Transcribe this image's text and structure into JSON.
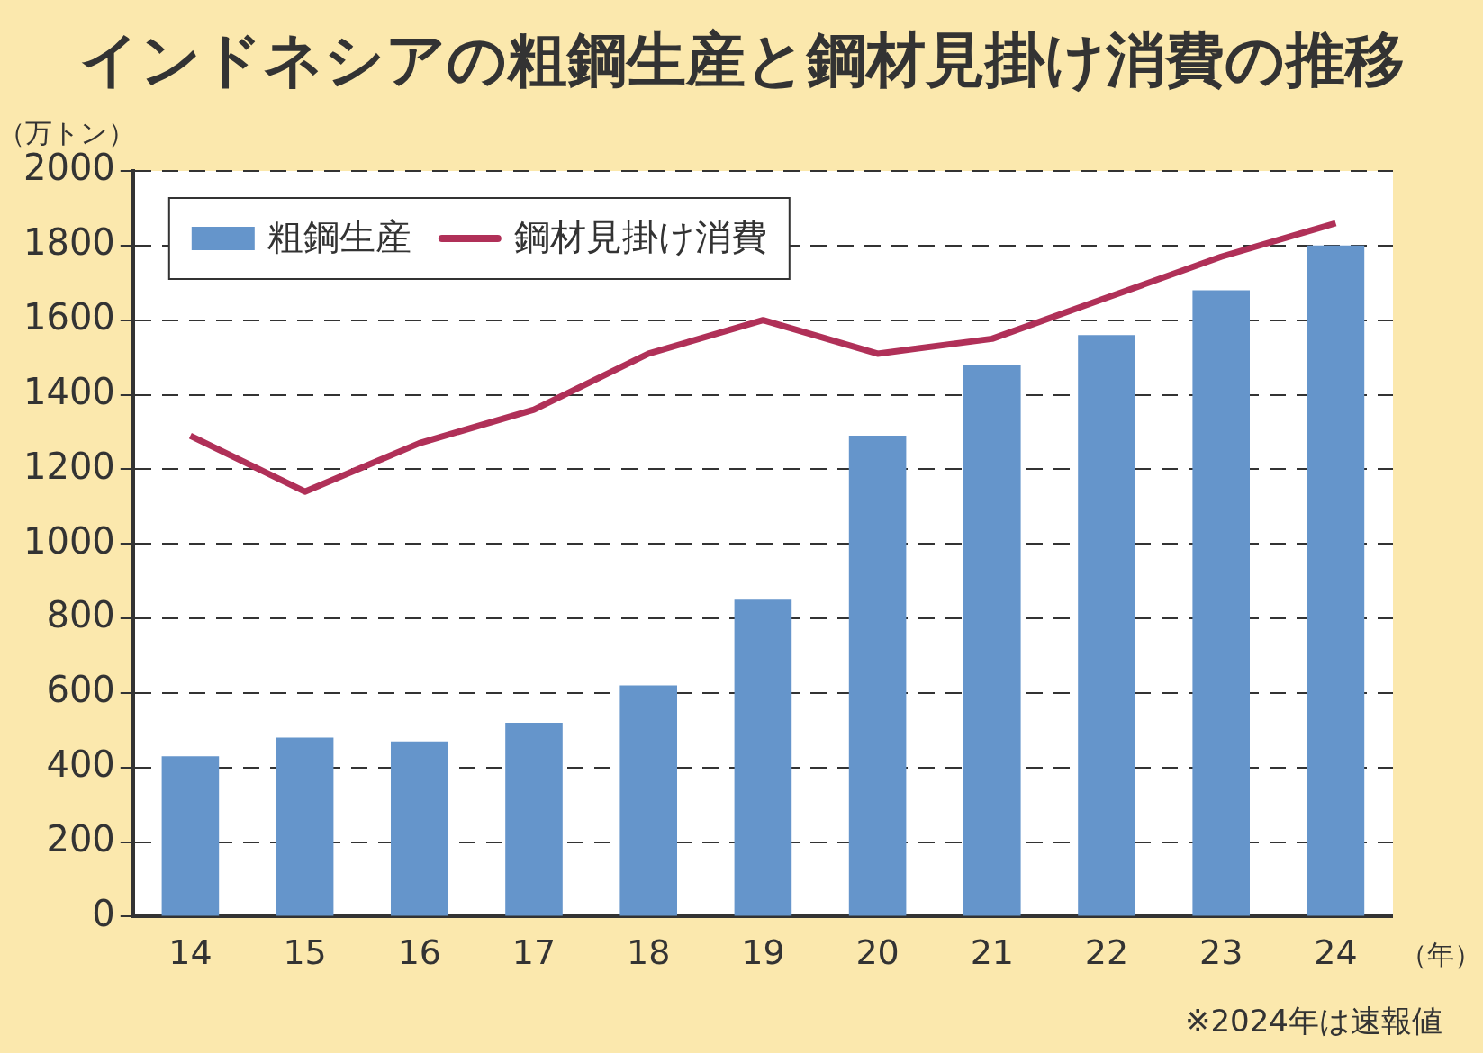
{
  "chart_data": {
    "type": "bar",
    "title": "インドネシアの粗鋼生産と鋼材見掛け消費の推移",
    "ylabel": "（万トン）",
    "xlabel": "（年）",
    "annotations": [
      "※2024年は速報値"
    ],
    "categories": [
      "14",
      "15",
      "16",
      "17",
      "18",
      "19",
      "20",
      "21",
      "22",
      "23",
      "24"
    ],
    "series": [
      {
        "name": "粗鋼生産",
        "color": "#6595cb",
        "values": [
          430,
          480,
          470,
          520,
          620,
          850,
          1290,
          1480,
          1560,
          1680,
          1800
        ]
      },
      {
        "name": "鋼材見掛け消費",
        "type": "line",
        "color": "#b03058",
        "values": [
          1290,
          1140,
          1270,
          1360,
          1510,
          1600,
          1510,
          1550,
          1660,
          1770,
          1860
        ]
      }
    ],
    "ylim": [
      0,
      2000
    ],
    "yticks": [
      0,
      200,
      400,
      600,
      800,
      1000,
      1200,
      1400,
      1600,
      1800,
      2000
    ],
    "grid": "y",
    "legend": "top left",
    "line_style": "solid"
  }
}
